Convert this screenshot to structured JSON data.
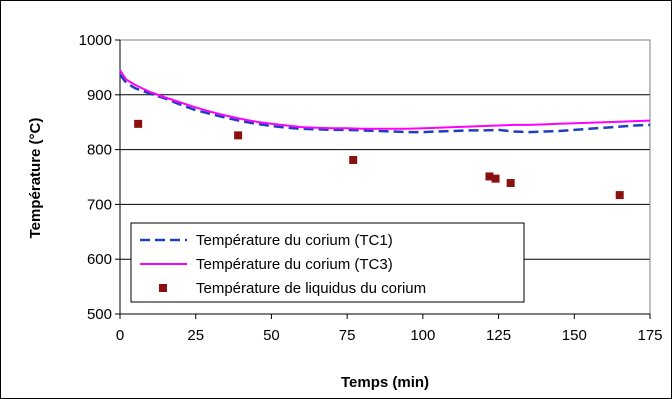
{
  "chart_data": {
    "type": "line",
    "title": "",
    "xlabel": "Temps (min)",
    "ylabel": "Température (°C)",
    "xlim": [
      0,
      175
    ],
    "ylim": [
      500,
      1000
    ],
    "x_ticks": [
      0,
      25,
      50,
      75,
      100,
      125,
      150,
      175
    ],
    "y_ticks": [
      500,
      600,
      700,
      800,
      900,
      1000
    ],
    "x_tick_labels": [
      "0",
      "25",
      "50",
      "75",
      "100",
      "125",
      "150",
      "175"
    ],
    "y_tick_labels": [
      "500",
      "600",
      "700",
      "800",
      "900",
      "1000"
    ],
    "grid": "horizontal",
    "legend_position": "bottom-left",
    "series": [
      {
        "name": "Température du corium (TC1)",
        "style": "dashed",
        "color": "#1f3fbf",
        "x": [
          0,
          2,
          5,
          10,
          15,
          20,
          25,
          30,
          35,
          40,
          45,
          50,
          55,
          60,
          65,
          70,
          75,
          80,
          85,
          90,
          95,
          100,
          105,
          110,
          115,
          120,
          125,
          130,
          135,
          140,
          145,
          150,
          155,
          160,
          165,
          170,
          175
        ],
        "y": [
          937,
          922,
          912,
          902,
          893,
          882,
          872,
          865,
          858,
          852,
          847,
          843,
          840,
          838,
          837,
          836,
          836,
          835,
          834,
          833,
          832,
          832,
          833,
          834,
          835,
          835,
          836,
          833,
          832,
          833,
          834,
          836,
          838,
          840,
          842,
          844,
          845
        ]
      },
      {
        "name": "Température du corium (TC3)",
        "style": "solid",
        "color": "#ff00ff",
        "x": [
          0,
          2,
          5,
          10,
          15,
          20,
          25,
          30,
          35,
          40,
          45,
          50,
          55,
          60,
          65,
          70,
          75,
          80,
          85,
          90,
          95,
          100,
          105,
          110,
          115,
          120,
          125,
          130,
          135,
          140,
          145,
          150,
          155,
          160,
          165,
          170,
          175
        ],
        "y": [
          945,
          928,
          918,
          905,
          895,
          886,
          877,
          869,
          862,
          856,
          851,
          847,
          844,
          841,
          840,
          839,
          839,
          838,
          838,
          838,
          838,
          839,
          840,
          841,
          842,
          843,
          844,
          845,
          845,
          846,
          847,
          848,
          849,
          850,
          851,
          852,
          853
        ]
      },
      {
        "name": "Température de liquidus du corium",
        "style": "markers",
        "color": "#8b1010",
        "x": [
          6,
          39,
          77,
          122,
          124,
          129,
          165
        ],
        "y": [
          847,
          826,
          781,
          751,
          747,
          739,
          717
        ]
      }
    ]
  }
}
